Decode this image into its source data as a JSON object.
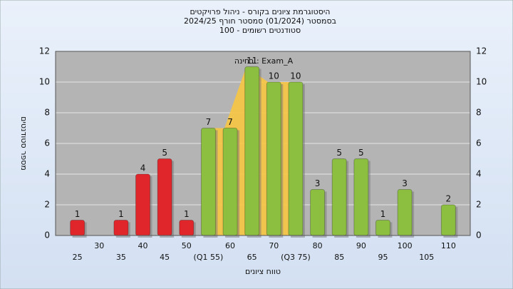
{
  "chart_data": {
    "type": "bar",
    "title": "היסטוגרמת ציונים בקורס - ניהול פרויקטים",
    "subtitle": "בסמסטר  (01/2024)  סמסטר חורף 2024/25",
    "subtitle2": "סטודנטים רשומים - 100",
    "annotation": "בחינה : Exam_A",
    "x_label": "טווח ציונים",
    "y_label": "מספר סטודנטים",
    "categories": [
      "25",
      "30",
      "35",
      "40",
      "45",
      "50",
      "(Q1 55)",
      "60",
      "65",
      "70",
      "(Q3 75)",
      "80",
      "85",
      "90",
      "95",
      "100",
      "105",
      "110"
    ],
    "values": [
      1,
      0,
      1,
      4,
      5,
      1,
      7,
      7,
      11,
      10,
      10,
      3,
      5,
      5,
      1,
      3,
      0,
      2
    ],
    "colors": [
      "#e0262b",
      "#e0262b",
      "#e0262b",
      "#e0262b",
      "#e0262b",
      "#e0262b",
      "#8cbf3f",
      "#8cbf3f",
      "#8cbf3f",
      "#8cbf3f",
      "#8cbf3f",
      "#8cbf3f",
      "#8cbf3f",
      "#8cbf3f",
      "#8cbf3f",
      "#8cbf3f",
      "#8cbf3f",
      "#8cbf3f"
    ],
    "iqr_color": "#f7c542",
    "ylim": [
      0,
      12
    ],
    "yticks": [
      0,
      2,
      4,
      6,
      8,
      10,
      12
    ],
    "grid": true
  }
}
